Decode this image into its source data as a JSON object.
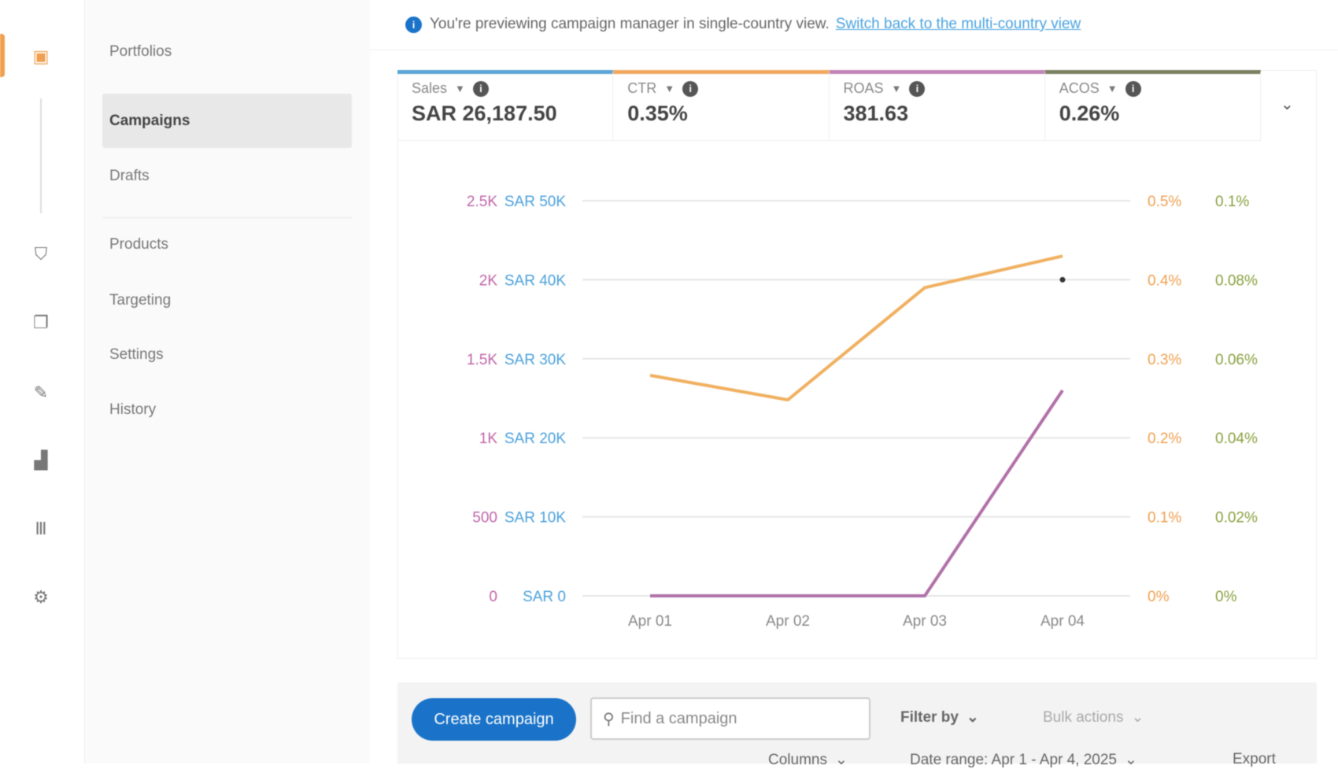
{
  "rail": {
    "icons": [
      "campaign-manager-icon",
      "shield-icon",
      "media-icon",
      "brand-icon",
      "reports-icon",
      "columns-icon",
      "settings-icon"
    ]
  },
  "nav": {
    "items": [
      "Portfolios",
      "Campaigns",
      "Drafts",
      "Products",
      "Targeting",
      "Settings",
      "History"
    ],
    "selected": "Campaigns"
  },
  "banner": {
    "text": "You're previewing campaign manager in single-country view.",
    "link": "Switch back to the multi-country view"
  },
  "metrics": [
    {
      "label": "Sales",
      "value": "SAR 26,187.50",
      "color": "#5ba4d6"
    },
    {
      "label": "CTR",
      "value": "0.35%",
      "color": "#f0a860"
    },
    {
      "label": "ROAS",
      "value": "381.63",
      "color": "#c184b6"
    },
    {
      "label": "ACOS",
      "value": "0.26%",
      "color": "#7b8060"
    }
  ],
  "chart_data": {
    "type": "line",
    "x": [
      "Apr 01",
      "Apr 02",
      "Apr 03",
      "Apr 04"
    ],
    "axes": {
      "roas": {
        "ticks": [
          "0",
          "500",
          "1K",
          "1.5K",
          "2K",
          "2.5K"
        ],
        "range": [
          0,
          2500
        ],
        "color": "#c064a8"
      },
      "sales": {
        "ticks": [
          "SAR 0",
          "SAR 10K",
          "SAR 20K",
          "SAR 30K",
          "SAR 40K",
          "SAR 50K"
        ],
        "range": [
          0,
          50000
        ],
        "color": "#4aa0dc"
      },
      "ctr": {
        "ticks": [
          "0%",
          "0.1%",
          "0.2%",
          "0.3%",
          "0.4%",
          "0.5%"
        ],
        "range": [
          0,
          0.5
        ],
        "color": "#f0a050"
      },
      "acos": {
        "ticks": [
          "0%",
          "0.02%",
          "0.04%",
          "0.06%",
          "0.08%",
          "0.1%"
        ],
        "range": [
          0,
          0.1
        ],
        "color": "#8aa040"
      }
    },
    "series": [
      {
        "name": "CTR",
        "axis": "ctr",
        "color": "#f0b060",
        "values": [
          0.279,
          0.248,
          0.39,
          0.43
        ]
      },
      {
        "name": "ROAS",
        "axis": "roas",
        "color": "#b070a8",
        "values": [
          0,
          0,
          0,
          1300
        ]
      },
      {
        "name": "ACOS",
        "axis": "acos",
        "color": "#333333",
        "values": [
          null,
          null,
          null,
          0.08
        ]
      }
    ],
    "grid": true
  },
  "toolbar": {
    "create": "Create campaign",
    "search_placeholder": "Find a campaign",
    "filter": "Filter by",
    "bulk": "Bulk actions",
    "columns": "Columns",
    "date_range": "Date range: Apr 1 - Apr 4, 2025",
    "export": "Export"
  }
}
